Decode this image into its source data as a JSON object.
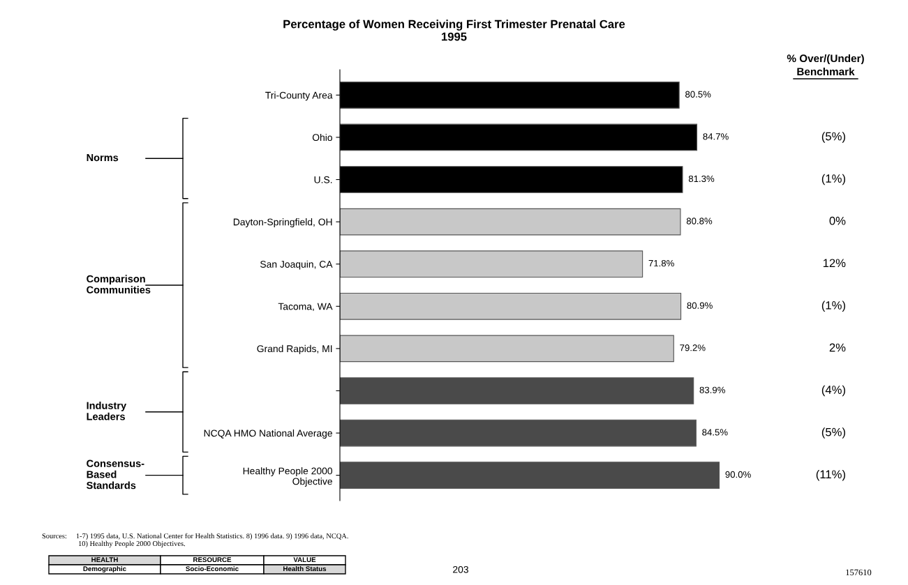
{
  "chart_data": {
    "type": "bar",
    "orientation": "horizontal",
    "title": "Percentage of Women Receiving First Trimester Prenatal Care\n1995",
    "categories": [
      "Tri-County Area",
      "Ohio",
      "U.S.",
      "Dayton-Springfield, OH",
      "San Joaquin, CA",
      "Tacoma, WA",
      "Grand Rapids, MI",
      null,
      "NCQA HMO National Average",
      "Healthy People 2000\nObjective"
    ],
    "values": [
      80.5,
      84.7,
      81.3,
      80.8,
      71.8,
      80.9,
      79.2,
      83.9,
      84.5,
      90.0
    ],
    "colors": [
      "#000000",
      "#000000",
      "#000000",
      "#c8c8c8",
      "#c8c8c8",
      "#c8c8c8",
      "#c8c8c8",
      "#4a4a4a",
      "#4a4a4a",
      "#4a4a4a"
    ],
    "value_labels": [
      "80.5%",
      "84.7%",
      "81.3%",
      "80.8%",
      "71.8%",
      "80.9%",
      "79.2%",
      "83.9%",
      "84.5%",
      "90.0%"
    ],
    "tick_labels": "y",
    "grid": false,
    "annotations": [
      "% Over/(Under)",
      "Benchmark",
      "(5%)",
      "(1%)",
      "0%",
      "12%",
      "(1%)",
      "2%",
      "(4%)",
      "(5%)",
      "(11%)",
      "Norms",
      "Comparison\nCommunities",
      "Industry\nLeaders",
      "Consensus-\nBased\nStandards",
      "Sources:     1-7) 1995 data, U.S. National Center for Health Statistics. 8) 1996 data. 9) 1996 data, NCQA.\n                    10) Healthy People 2000 Objectives.",
      "HEALTH",
      "RESOURCE",
      "VALUE",
      "Demographic",
      "Socio-Economic",
      "Health Status",
      "203",
      "157610"
    ]
  }
}
